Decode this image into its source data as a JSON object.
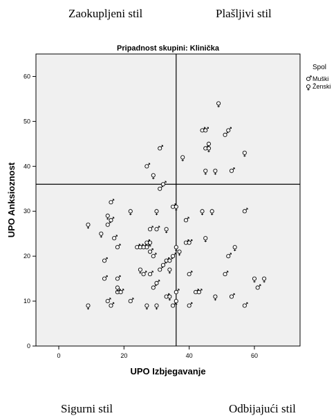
{
  "quadrant_labels": {
    "top_left": "Zaokupljeni stil",
    "top_right": "Plašljivi stil",
    "bottom_left": "Sigurni stil",
    "bottom_right": "Odbijajući stil"
  },
  "chart_data": {
    "type": "scatter",
    "title": "Pripadnost skupini: Klinička",
    "xlabel": "UPO Izbjegavanje",
    "ylabel": "UPO Anksioznost",
    "xlim": [
      -7,
      74
    ],
    "ylim": [
      0,
      65
    ],
    "xticks": [
      "0",
      "20",
      "40",
      "60"
    ],
    "yticks": [
      "0",
      "10",
      "20",
      "30",
      "40",
      "50",
      "60"
    ],
    "grid": false,
    "reference_lines": {
      "x": 36,
      "y": 36
    },
    "legend": {
      "title": "Spol",
      "placement": "right",
      "entries": [
        "Muški",
        "Ženski"
      ]
    },
    "series": [
      {
        "name": "Muški",
        "symbol": "male",
        "points": [
          [
            16,
            32
          ],
          [
            16,
            28
          ],
          [
            15,
            27
          ],
          [
            17,
            24
          ],
          [
            18,
            22
          ],
          [
            18,
            15
          ],
          [
            15,
            10
          ],
          [
            16,
            9
          ],
          [
            18,
            12
          ],
          [
            19,
            12
          ],
          [
            27,
            23
          ],
          [
            28,
            26
          ],
          [
            29,
            20
          ],
          [
            27,
            22
          ],
          [
            28,
            21
          ],
          [
            30,
            26
          ],
          [
            29,
            13
          ],
          [
            30,
            14
          ],
          [
            31,
            17
          ],
          [
            33,
            19
          ],
          [
            34,
            19
          ],
          [
            35,
            20
          ],
          [
            32,
            18
          ],
          [
            33,
            11
          ],
          [
            35,
            9
          ],
          [
            36,
            12
          ],
          [
            35,
            31
          ],
          [
            31,
            35
          ],
          [
            32,
            36
          ],
          [
            39,
            28
          ],
          [
            39,
            23
          ],
          [
            40,
            23
          ],
          [
            40,
            16
          ],
          [
            40,
            9
          ],
          [
            42,
            12
          ],
          [
            43,
            12
          ],
          [
            44,
            48
          ],
          [
            45,
            48
          ],
          [
            45,
            44
          ],
          [
            51,
            47
          ],
          [
            52,
            48
          ],
          [
            53,
            39
          ],
          [
            53,
            11
          ],
          [
            51,
            16
          ],
          [
            52,
            20
          ],
          [
            57,
            30
          ],
          [
            57,
            9
          ],
          [
            61,
            13
          ],
          [
            27,
            40
          ],
          [
            31,
            44
          ],
          [
            22,
            10
          ],
          [
            26,
            16
          ],
          [
            28,
            16
          ],
          [
            24,
            22
          ],
          [
            25,
            22
          ],
          [
            26,
            22
          ],
          [
            14,
            19
          ],
          [
            14,
            15
          ]
        ]
      },
      {
        "name": "Ženski",
        "symbol": "female",
        "points": [
          [
            9,
            27
          ],
          [
            9,
            9
          ],
          [
            13,
            25
          ],
          [
            15,
            29
          ],
          [
            18,
            13
          ],
          [
            22,
            30
          ],
          [
            25,
            17
          ],
          [
            27,
            9
          ],
          [
            30,
            9
          ],
          [
            30,
            30
          ],
          [
            33,
            26
          ],
          [
            34,
            11
          ],
          [
            34,
            17
          ],
          [
            36,
            10
          ],
          [
            36,
            22
          ],
          [
            37,
            21
          ],
          [
            38,
            42
          ],
          [
            44,
            30
          ],
          [
            45,
            39
          ],
          [
            46,
            45
          ],
          [
            46,
            44
          ],
          [
            47,
            30
          ],
          [
            45,
            24
          ],
          [
            48,
            39
          ],
          [
            48,
            11
          ],
          [
            49,
            54
          ],
          [
            54,
            22
          ],
          [
            57,
            43
          ],
          [
            60,
            15
          ],
          [
            63,
            15
          ],
          [
            28,
            23
          ],
          [
            36,
            31
          ],
          [
            29,
            38
          ]
        ]
      }
    ]
  }
}
